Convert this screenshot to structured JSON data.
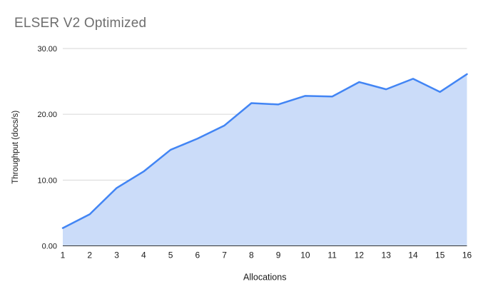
{
  "chart": {
    "title": "ELSER V2 Optimized"
  },
  "chart_data": {
    "type": "area",
    "title": "ELSER V2 Optimized",
    "xlabel": "Allocations",
    "ylabel": "Throughput (docs/s)",
    "categories": [
      "1",
      "2",
      "3",
      "4",
      "5",
      "6",
      "7",
      "8",
      "9",
      "10",
      "11",
      "12",
      "13",
      "14",
      "15",
      "16"
    ],
    "series": [
      {
        "name": "Throughput",
        "values": [
          2.7,
          4.8,
          8.8,
          11.3,
          14.6,
          16.3,
          18.3,
          21.7,
          21.5,
          22.8,
          22.7,
          24.9,
          23.8,
          25.4,
          23.4,
          26.1
        ]
      }
    ],
    "ylim": [
      0,
      30
    ],
    "y_ticks": [
      {
        "value": 0,
        "label": "0.00"
      },
      {
        "value": 10,
        "label": "10.00"
      },
      {
        "value": 20,
        "label": "20.00"
      },
      {
        "value": 30,
        "label": "30.00"
      }
    ],
    "grid": true,
    "legend_position": "none",
    "colors": {
      "line": "#4285f4",
      "fill": "#cbdcf9",
      "gridline": "#d6d6d6",
      "axis_line": "#333333",
      "tick_label": "#1a1a1a",
      "axis_title": "#1a1a1a",
      "title": "#6e6e6e",
      "background": "#ffffff"
    }
  }
}
